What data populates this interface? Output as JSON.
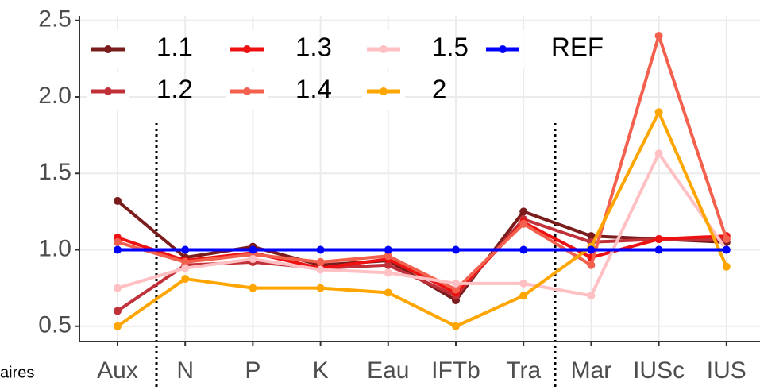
{
  "chart_data": {
    "type": "line",
    "categories": [
      "Aux",
      "N",
      "P",
      "K",
      "Eau",
      "IFTb",
      "Tra",
      "Mar",
      "IUSc",
      "IUS"
    ],
    "series": [
      {
        "name": "1.1",
        "color": "#7b1c1c",
        "values": [
          1.32,
          0.95,
          1.02,
          0.9,
          0.93,
          0.67,
          1.25,
          1.09,
          1.07,
          1.05
        ]
      },
      {
        "name": "1.2",
        "color": "#c0313a",
        "values": [
          0.6,
          0.9,
          0.92,
          0.88,
          0.9,
          0.7,
          1.2,
          1.05,
          1.07,
          1.07
        ]
      },
      {
        "name": "1.3",
        "color": "#ee1111",
        "values": [
          1.08,
          0.93,
          0.98,
          0.88,
          0.94,
          0.72,
          1.18,
          0.95,
          1.07,
          1.09
        ]
      },
      {
        "name": "1.4",
        "color": "#f4604e",
        "values": [
          1.05,
          0.92,
          0.97,
          0.92,
          0.96,
          0.74,
          1.17,
          0.9,
          2.4,
          1.07
        ]
      },
      {
        "name": "1.5",
        "color": "#ffc0c4",
        "values": [
          0.75,
          0.88,
          0.94,
          0.87,
          0.85,
          0.78,
          0.78,
          0.7,
          1.63,
          1.0
        ]
      },
      {
        "name": "2",
        "color": "#ffa500",
        "values": [
          0.5,
          0.81,
          0.75,
          0.75,
          0.72,
          0.5,
          0.7,
          1.02,
          1.9,
          0.89
        ]
      },
      {
        "name": "REF",
        "color": "#0000ff",
        "values": [
          1.0,
          1.0,
          1.0,
          1.0,
          1.0,
          1.0,
          1.0,
          1.0,
          1.0,
          1.0
        ]
      }
    ],
    "ylim": [
      0.4,
      2.53
    ],
    "yticks": [
      0.5,
      {
        "value": 1.0,
        "label": "1.0"
      },
      1.5,
      {
        "value": 2.0,
        "label": "2.0"
      },
      2.5
    ],
    "grid": true,
    "legend": "top-left",
    "annotations": [
      "aires"
    ]
  }
}
